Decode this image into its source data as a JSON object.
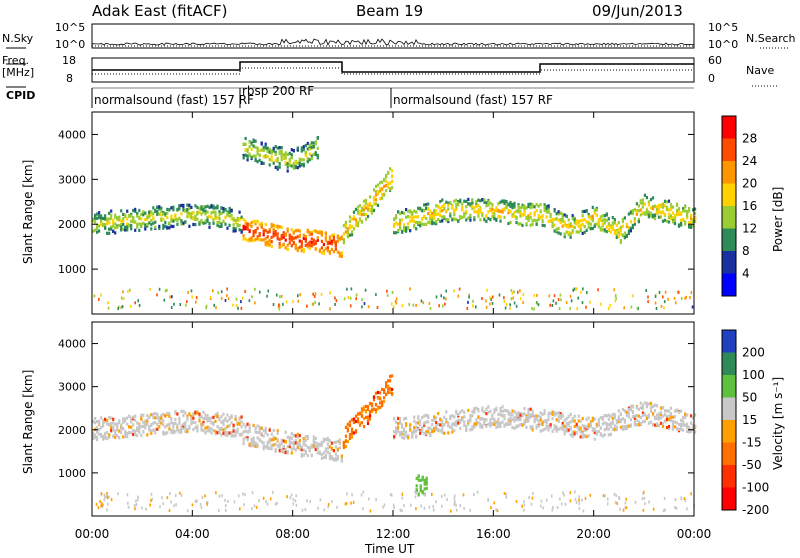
{
  "header": {
    "station": "Adak East (fitACF)",
    "beam": "Beam 19",
    "date": "09/Jun/2013"
  },
  "labels": {
    "nsky": "N.Sky",
    "nsearch": "N.Search",
    "freq": "Freq.",
    "freq_unit": "[MHz]",
    "nave": "Nave",
    "cpid": "CPID",
    "ylabel": "Slant Range [km]",
    "xlabel": "Time UT",
    "power_label": "Power [dB]",
    "velocity_label": "Velocity [m s⁻¹]"
  },
  "noise_axis": {
    "ticks": [
      "10^5",
      "10^0"
    ]
  },
  "freq_axis": {
    "left_ticks": [
      "18",
      "8"
    ],
    "right_ticks": [
      "60",
      "0"
    ]
  },
  "cpid_segments": [
    {
      "start_h": 0,
      "end_h": 6,
      "label": "normalsound (fast) 157 RF"
    },
    {
      "start_h": 6,
      "end_h": 12,
      "label": "rbsp 200 RF"
    },
    {
      "start_h": 12,
      "end_h": 24,
      "label": "normalsound (fast) 157 RF"
    }
  ],
  "power_scale": {
    "ticks": [
      "28",
      "24",
      "20",
      "16",
      "12",
      "8",
      "4"
    ],
    "colors": [
      "#ff0000",
      "#ff4b00",
      "#ff9600",
      "#ffd200",
      "#9acd32",
      "#2e8b57",
      "#1a2fa0",
      "#0000ff"
    ]
  },
  "velocity_scale": {
    "ticks": [
      "200",
      "100",
      "50",
      "15",
      "-15",
      "-50",
      "-100",
      "-200"
    ],
    "colors": [
      "#2040c0",
      "#2e8b57",
      "#60c040",
      "#c8c8c8",
      "#ffa000",
      "#ff7000",
      "#ff3000",
      "#ff0000"
    ]
  },
  "chart_data": [
    {
      "type": "heatmap",
      "title": "Power",
      "xlabel": "Time UT",
      "ylabel": "Slant Range [km]",
      "xlim": [
        0,
        24
      ],
      "ylim": [
        0,
        4500
      ],
      "x_ticks": [
        "00:00",
        "04:00",
        "08:00",
        "12:00",
        "16:00",
        "20:00",
        "00:00"
      ],
      "y_ticks": [
        1000,
        2000,
        3000,
        4000
      ],
      "colorbar_label": "Power [dB]",
      "colorbar_range": [
        0,
        30
      ],
      "echo_bands": [
        {
          "t": [
            0,
            1,
            2,
            3,
            4,
            5,
            6
          ],
          "range_km": [
            2000,
            2050,
            2100,
            2150,
            2200,
            2150,
            2050
          ],
          "power_db": 16
        },
        {
          "t": [
            6,
            7,
            8,
            9,
            10
          ],
          "range_km": [
            1900,
            1750,
            1650,
            1600,
            1500
          ],
          "power_db": 28
        },
        {
          "t": [
            6,
            7,
            8,
            9
          ],
          "range_km": [
            3700,
            3500,
            3400,
            3700
          ],
          "power_db": 16
        },
        {
          "t": [
            10,
            11,
            12
          ],
          "range_km": [
            1800,
            2400,
            3100
          ],
          "power_db": 20
        },
        {
          "t": [
            12,
            14,
            16,
            17,
            18,
            19,
            20,
            21,
            22,
            23,
            24
          ],
          "range_km": [
            2000,
            2300,
            2300,
            2200,
            2200,
            1900,
            2150,
            1800,
            2400,
            2250,
            2100
          ],
          "power_db": 18
        }
      ]
    },
    {
      "type": "heatmap",
      "title": "Velocity",
      "xlabel": "Time UT",
      "ylabel": "Slant Range [km]",
      "xlim": [
        0,
        24
      ],
      "ylim": [
        0,
        4500
      ],
      "x_ticks": [
        "00:00",
        "04:00",
        "08:00",
        "12:00",
        "16:00",
        "20:00",
        "00:00"
      ],
      "y_ticks": [
        1000,
        2000,
        3000,
        4000
      ],
      "colorbar_label": "Velocity [m s⁻¹]",
      "colorbar_range": [
        -200,
        200
      ],
      "echo_bands": [
        {
          "t": [
            0,
            2,
            4,
            6
          ],
          "range_km": [
            2000,
            2100,
            2200,
            2050
          ],
          "velocity": 0
        },
        {
          "t": [
            6,
            8,
            10
          ],
          "range_km": [
            1900,
            1650,
            1500
          ],
          "velocity": 0
        },
        {
          "t": [
            10,
            11,
            12
          ],
          "range_km": [
            1800,
            2400,
            3100
          ],
          "velocity": -50
        },
        {
          "t": [
            12.9,
            13.3
          ],
          "range_km": [
            700,
            700
          ],
          "velocity": 50
        },
        {
          "t": [
            12,
            16,
            18,
            20,
            22,
            24
          ],
          "range_km": [
            2000,
            2300,
            2200,
            2000,
            2400,
            2100
          ],
          "velocity": 0
        }
      ]
    }
  ]
}
